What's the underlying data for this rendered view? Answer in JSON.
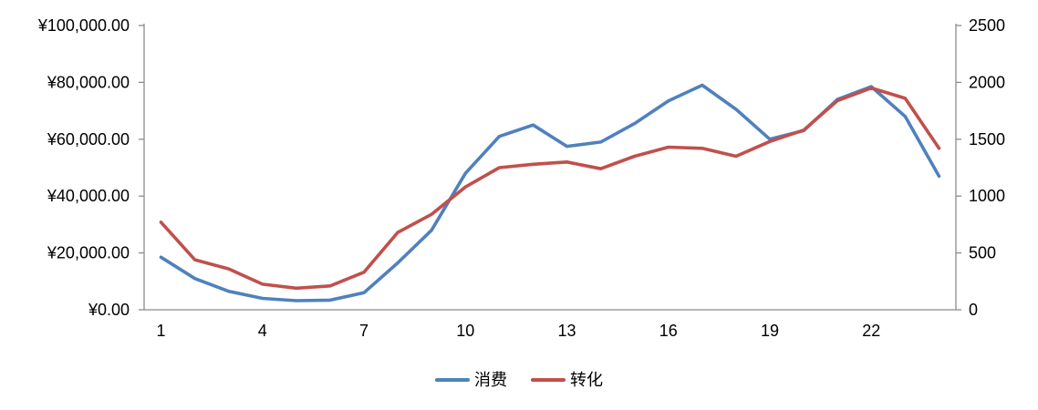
{
  "chart_data": {
    "type": "line",
    "title": "",
    "x": [
      1,
      2,
      3,
      4,
      5,
      6,
      7,
      8,
      9,
      10,
      11,
      12,
      13,
      14,
      15,
      16,
      17,
      18,
      19,
      20,
      21,
      22,
      23,
      24
    ],
    "x_tick_positions": [
      1,
      4,
      7,
      10,
      13,
      16,
      19,
      22
    ],
    "x_tick_labels": [
      "1",
      "4",
      "7",
      "10",
      "13",
      "16",
      "19",
      "22"
    ],
    "series": [
      {
        "name": "消费",
        "axis": "left",
        "color": "#4F81BD",
        "values": [
          18500,
          11000,
          6500,
          4000,
          3200,
          3400,
          6000,
          16500,
          28000,
          48000,
          61000,
          65000,
          57500,
          59000,
          65500,
          73500,
          79000,
          70500,
          60000,
          63000,
          74000,
          78500,
          68000,
          47000
        ]
      },
      {
        "name": "转化",
        "axis": "right",
        "color": "#C0504D",
        "values": [
          770,
          440,
          360,
          225,
          190,
          210,
          330,
          680,
          840,
          1080,
          1250,
          1280,
          1300,
          1240,
          1350,
          1430,
          1420,
          1350,
          1480,
          1580,
          1840,
          1950,
          1860,
          1420
        ]
      }
    ],
    "left_axis": {
      "min": 0,
      "max": 100000,
      "tick_interval": 20000,
      "tick_labels": [
        "¥0.00",
        "¥20,000.00",
        "¥40,000.00",
        "¥60,000.00",
        "¥80,000.00",
        "¥100,000.00"
      ]
    },
    "right_axis": {
      "min": 0,
      "max": 2500,
      "tick_interval": 500,
      "tick_labels": [
        "0",
        "500",
        "1000",
        "1500",
        "2000",
        "2500"
      ]
    },
    "legend": {
      "position": "bottom",
      "entries": [
        "消费",
        "转化"
      ]
    },
    "grid": false,
    "axis_color": "#8C8C8C",
    "text_color": "#000000",
    "background": "#FFFFFF"
  }
}
